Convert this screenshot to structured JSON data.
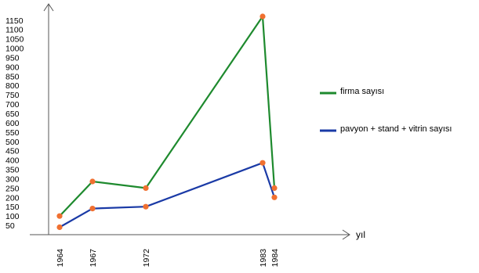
{
  "chart_data": {
    "type": "line",
    "xlabel": "yıl",
    "ylabel": "",
    "x": [
      1964,
      1967,
      1972,
      1983,
      1984
    ],
    "x_tick_labels": [
      "1964",
      "1967",
      "1972",
      "1983",
      "1984"
    ],
    "y_ticks": [
      50,
      100,
      150,
      200,
      250,
      300,
      350,
      400,
      450,
      500,
      550,
      600,
      650,
      700,
      750,
      800,
      850,
      900,
      950,
      1000,
      1050,
      1100,
      1150
    ],
    "ylim": [
      0,
      1250
    ],
    "grid": false,
    "legend_placement": "right",
    "marker_color": "#f07030",
    "series": [
      {
        "name": "firma sayısı",
        "color": "#1e8a2e",
        "values": [
          100,
          285,
          250,
          1170,
          250
        ]
      },
      {
        "name": "pavyon + stand + vitrin sayısı",
        "color": "#1a3aa6",
        "values": [
          40,
          140,
          150,
          385,
          200
        ]
      }
    ]
  }
}
